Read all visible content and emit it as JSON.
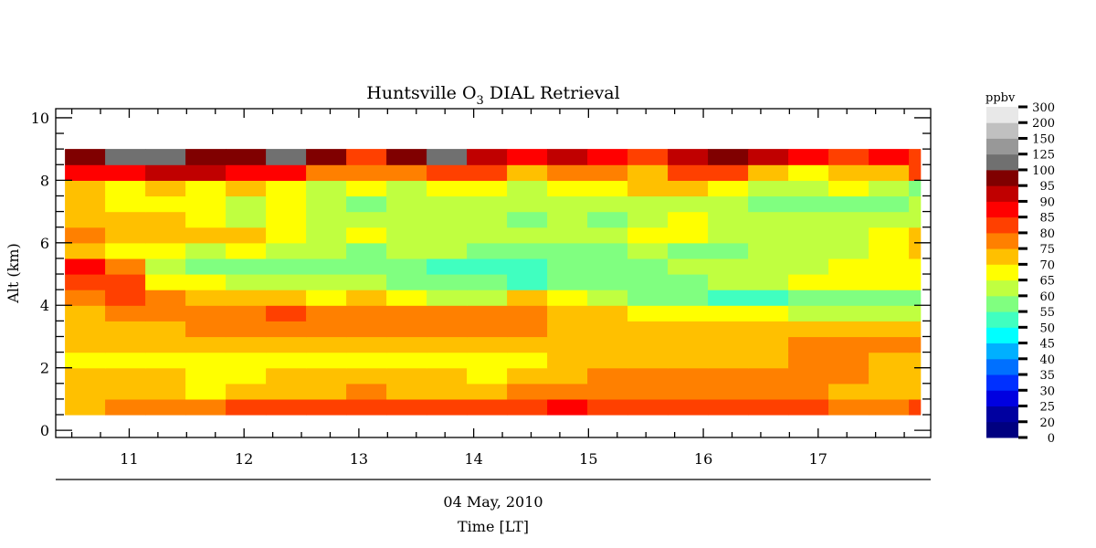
{
  "chart_data": {
    "type": "heatmap",
    "title": {
      "prefix": "Huntsville O",
      "subscript": "3",
      "suffix": " DIAL Retrieval"
    },
    "xlabel": "Time [LT]",
    "date_label": "04 May, 2010",
    "ylabel": "Alt (km)",
    "xlim": [
      10.36,
      17.98
    ],
    "ylim": [
      -0.23,
      10.29
    ],
    "xticks": [
      11,
      12,
      13,
      14,
      15,
      16,
      17
    ],
    "xtick_labels": [
      "11",
      "12",
      "13",
      "14",
      "15",
      "16",
      "17"
    ],
    "xminor_step": 0.25,
    "yticks": [
      0,
      2,
      4,
      6,
      8,
      10
    ],
    "ytick_labels": [
      "0",
      "2",
      "4",
      "6",
      "8",
      "10"
    ],
    "yminor_step": 0.5,
    "x_start": 10.44,
    "x_end": 17.89,
    "x_step_hours": 0.35,
    "y_bins_km": [
      0.5,
      1.0,
      1.5,
      2.0,
      2.5,
      3.0,
      3.5,
      4.0,
      4.5,
      5.0,
      5.5,
      6.0,
      6.5,
      7.0,
      7.5,
      8.0,
      8.5
    ],
    "y_bin_size_km": 0.5,
    "z_units": "ppbv",
    "z": [
      [
        72,
        75,
        77,
        77,
        80,
        80,
        82,
        82,
        82,
        82,
        82,
        82,
        85,
        82,
        82,
        82,
        82,
        82,
        80,
        77,
        77,
        80
      ],
      [
        72,
        72,
        70,
        67,
        70,
        72,
        72,
        75,
        72,
        72,
        72,
        75,
        77,
        77,
        77,
        77,
        77,
        77,
        75,
        72,
        72,
        72
      ],
      [
        70,
        72,
        70,
        67,
        67,
        70,
        70,
        70,
        72,
        70,
        67,
        70,
        70,
        75,
        77,
        77,
        77,
        77,
        77,
        75,
        72,
        72
      ],
      [
        67,
        67,
        67,
        67,
        67,
        67,
        67,
        67,
        67,
        67,
        67,
        67,
        70,
        72,
        72,
        72,
        72,
        72,
        77,
        75,
        72,
        72
      ],
      [
        70,
        70,
        72,
        72,
        72,
        72,
        72,
        72,
        72,
        72,
        72,
        72,
        72,
        72,
        72,
        72,
        72,
        72,
        77,
        75,
        75,
        77
      ],
      [
        72,
        72,
        72,
        75,
        75,
        77,
        75,
        77,
        77,
        77,
        77,
        75,
        72,
        72,
        70,
        70,
        72,
        72,
        72,
        70,
        72,
        72
      ],
      [
        72,
        77,
        77,
        77,
        77,
        80,
        77,
        77,
        77,
        75,
        77,
        77,
        72,
        70,
        65,
        65,
        65,
        65,
        62,
        62,
        60,
        60
      ],
      [
        75,
        80,
        75,
        70,
        70,
        70,
        67,
        70,
        65,
        62,
        62,
        70,
        67,
        62,
        55,
        55,
        52,
        52,
        55,
        55,
        57,
        55
      ],
      [
        82,
        82,
        67,
        65,
        60,
        60,
        60,
        62,
        55,
        55,
        55,
        52,
        55,
        55,
        55,
        57,
        60,
        62,
        65,
        67,
        67,
        67
      ],
      [
        88,
        77,
        60,
        57,
        57,
        55,
        57,
        55,
        55,
        52,
        52,
        52,
        55,
        57,
        57,
        60,
        60,
        62,
        62,
        65,
        67,
        67
      ],
      [
        72,
        67,
        65,
        60,
        65,
        62,
        60,
        57,
        62,
        60,
        57,
        57,
        57,
        55,
        60,
        57,
        57,
        62,
        62,
        62,
        67,
        70
      ],
      [
        75,
        72,
        72,
        70,
        70,
        67,
        62,
        65,
        62,
        62,
        62,
        62,
        62,
        60,
        65,
        67,
        62,
        62,
        62,
        62,
        65,
        70
      ],
      [
        72,
        70,
        72,
        65,
        62,
        67,
        62,
        62,
        62,
        60,
        60,
        57,
        60,
        57,
        62,
        65,
        62,
        60,
        62,
        62,
        62,
        62
      ],
      [
        70,
        67,
        67,
        65,
        62,
        65,
        60,
        57,
        60,
        60,
        62,
        62,
        60,
        60,
        62,
        62,
        60,
        57,
        57,
        57,
        57,
        60
      ],
      [
        72,
        67,
        72,
        67,
        70,
        65,
        62,
        65,
        62,
        65,
        65,
        62,
        67,
        65,
        70,
        70,
        65,
        60,
        60,
        65,
        62,
        57
      ],
      [
        85,
        87,
        90,
        90,
        85,
        85,
        75,
        75,
        77,
        82,
        80,
        70,
        77,
        75,
        72,
        82,
        80,
        72,
        67,
        70,
        72,
        82
      ],
      [
        97,
        110,
        110,
        97,
        97,
        110,
        97,
        82,
        97,
        110,
        92,
        85,
        90,
        87,
        82,
        90,
        95,
        92,
        85,
        80,
        85,
        82
      ]
    ],
    "colorbar": {
      "label": "ppbv",
      "levels": [
        0,
        20,
        25,
        30,
        35,
        40,
        45,
        50,
        55,
        60,
        65,
        70,
        75,
        80,
        85,
        90,
        95,
        100,
        125,
        150,
        200,
        300
      ],
      "level_labels": [
        "0",
        "20",
        "25",
        "30",
        "35",
        "40",
        "45",
        "50",
        "55",
        "60",
        "65",
        "70",
        "75",
        "80",
        "85",
        "90",
        "95",
        "100",
        "125",
        "150",
        "200",
        "300"
      ],
      "colors": [
        "#000080",
        "#0000a0",
        "#0000e0",
        "#0030ff",
        "#0070ff",
        "#00b0ff",
        "#00ffff",
        "#40ffc0",
        "#80ff80",
        "#c0ff40",
        "#ffff00",
        "#ffc000",
        "#ff8000",
        "#ff4000",
        "#ff0000",
        "#c00000",
        "#800000",
        "#707070",
        "#989898",
        "#c0c0c0",
        "#e8e8e8"
      ]
    }
  }
}
